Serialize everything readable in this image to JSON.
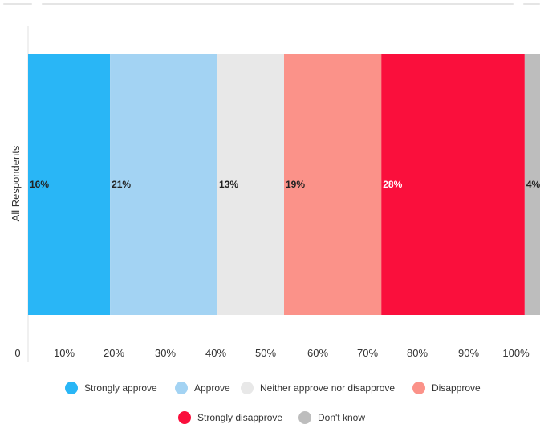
{
  "chart_data": {
    "type": "bar",
    "orientation": "horizontal",
    "stacked": true,
    "categories": [
      "All Respondents"
    ],
    "xlim": [
      0,
      100
    ],
    "x_ticks": [
      "0",
      "10%",
      "20%",
      "30%",
      "40%",
      "50%",
      "60%",
      "70%",
      "80%",
      "90%",
      "100%"
    ],
    "ylabel": "All Respondents",
    "grid": false,
    "legend_placement": "bottom",
    "series": [
      {
        "name": "Strongly approve",
        "values": [
          16
        ],
        "label": "16%",
        "color": "#29b6f6",
        "label_color": "#222222"
      },
      {
        "name": "Approve",
        "values": [
          21
        ],
        "label": "21%",
        "color": "#a3d3f3",
        "label_color": "#222222"
      },
      {
        "name": "Neither approve nor disapprove",
        "values": [
          13
        ],
        "label": "13%",
        "color": "#e8e8e8",
        "label_color": "#222222"
      },
      {
        "name": "Disapprove",
        "values": [
          19
        ],
        "label": "19%",
        "color": "#fb9289",
        "label_color": "#222222"
      },
      {
        "name": "Strongly disapprove",
        "values": [
          28
        ],
        "label": "28%",
        "color": "#fa0f3c",
        "label_color": "#ffffff"
      },
      {
        "name": "Don't know",
        "values": [
          4
        ],
        "label": "4%",
        "color": "#bdbdbd",
        "label_color": "#222222"
      }
    ]
  }
}
